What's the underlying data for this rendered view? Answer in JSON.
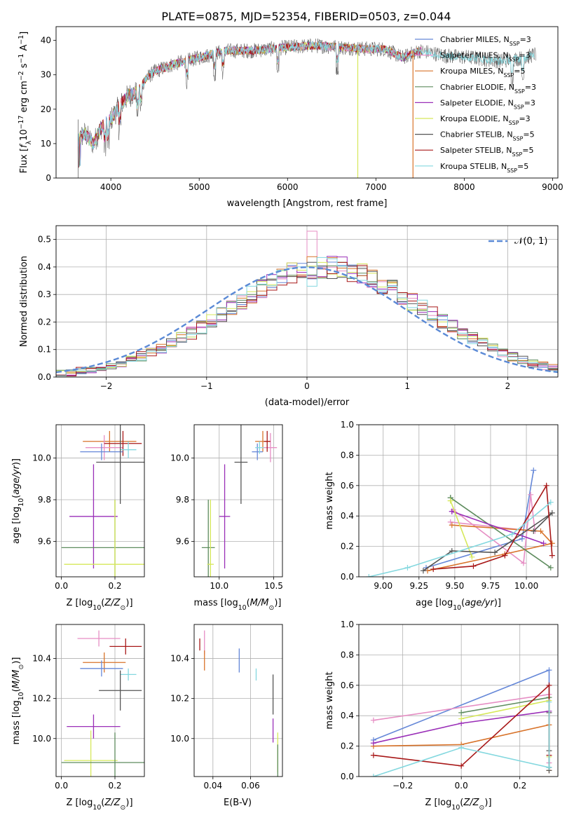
{
  "figure_title": "PLATE=0875, MJD=52354, FIBERID=0503, z=0.044",
  "models": [
    {
      "label": "Chabrier MILES, N_SSP=3",
      "color": "#6688d8"
    },
    {
      "label": "Salpeter MILES, N_SSP=3",
      "color": "#e68ec4"
    },
    {
      "label": "Kroupa MILES, N_SSP=5",
      "color": "#d8732a"
    },
    {
      "label": "Chabrier ELODIE, N_SSP=3",
      "color": "#5e8c5e"
    },
    {
      "label": "Salpeter ELODIE, N_SSP=3",
      "color": "#9a2fb8"
    },
    {
      "label": "Kroupa ELODIE, N_SSP=3",
      "color": "#d6e85a"
    },
    {
      "label": "Chabrier STELIB, N_SSP=5",
      "color": "#555555"
    },
    {
      "label": "Salpeter STELIB, N_SSP=5",
      "color": "#a81818"
    },
    {
      "label": "Kroupa STELIB, N_SSP=5",
      "color": "#84d8df"
    }
  ],
  "chart_data": [
    {
      "type": "line",
      "panel": "spectrum",
      "xlabel": "wavelength [Angstrom, rest frame]",
      "ylabel": "Flux [f_λ10^-17 erg cm^-2 s^-1 A^-1]",
      "xlim": [
        3380,
        9060
      ],
      "ylim": [
        0,
        44
      ],
      "xticks": [
        4000,
        5000,
        6000,
        7000,
        8000,
        9000
      ],
      "yticks": [
        0,
        10,
        20,
        30,
        40
      ],
      "continuum": {
        "x": [
          3630,
          3700,
          3800,
          3900,
          4000,
          4100,
          4200,
          4300,
          4400,
          4500,
          4700,
          5000,
          5300,
          5600,
          6000,
          6300,
          6600,
          6900,
          7100,
          7300,
          7500,
          7800,
          8100,
          8400,
          8700,
          8800
        ],
        "y": [
          11,
          13,
          10,
          15,
          17,
          21,
          24,
          25,
          29,
          31,
          33,
          35,
          37,
          37,
          38,
          38.5,
          38,
          37.5,
          37.5,
          35,
          37,
          35.5,
          35,
          34,
          35,
          36
        ]
      },
      "drops": [
        {
          "x": 6795,
          "y_from": 37,
          "y_to": 0
        },
        {
          "x": 7420,
          "y_from": 37,
          "y_to": 0
        }
      ],
      "legend": "right"
    },
    {
      "type": "step",
      "panel": "residual_distribution",
      "xlabel": "(data-model)/error",
      "ylabel": "Normed distribution",
      "xlim": [
        -2.5,
        2.5
      ],
      "ylim": [
        0,
        0.55
      ],
      "xticks": [
        -2,
        -1,
        0,
        1,
        2
      ],
      "yticks": [
        0.0,
        0.1,
        0.2,
        0.3,
        0.4,
        0.5
      ],
      "reference_curve": "𝒩(0, 1)",
      "bin_width": 0.1,
      "bin_start": -2.5,
      "envelope": [
        0.013,
        0.013,
        0.022,
        0.026,
        0.032,
        0.04,
        0.051,
        0.062,
        0.075,
        0.089,
        0.104,
        0.122,
        0.14,
        0.16,
        0.183,
        0.205,
        0.228,
        0.252,
        0.275,
        0.298,
        0.32,
        0.341,
        0.36,
        0.375,
        0.388,
        0.397,
        0.399,
        0.399,
        0.397,
        0.388,
        0.375,
        0.36,
        0.341,
        0.32,
        0.298,
        0.275,
        0.252,
        0.228,
        0.205,
        0.183,
        0.16,
        0.14,
        0.122,
        0.104,
        0.089,
        0.075,
        0.062,
        0.051,
        0.04,
        0.032
      ],
      "grid": true,
      "legend": "top-right"
    },
    {
      "type": "errorbar",
      "panel": "age_vs_Z",
      "xlabel": "Z [log10(Z/Z⊙)]",
      "ylabel": "age [log10(age/yr)]",
      "xlim": [
        -0.02,
        0.31
      ],
      "ylim": [
        9.43,
        10.16
      ],
      "xticks": [
        0.0,
        0.2
      ],
      "yticks": [
        9.6,
        9.8,
        10.0
      ],
      "points": [
        {
          "x": 0.18,
          "y": 10.08,
          "xerr": 0.1,
          "yerr": 0.05,
          "model": 2
        },
        {
          "x": 0.16,
          "y": 10.05,
          "xerr": 0.07,
          "yerr": 0.06,
          "model": 1
        },
        {
          "x": 0.23,
          "y": 10.07,
          "xerr": 0.07,
          "yerr": 0.06,
          "model": 7
        },
        {
          "x": 0.15,
          "y": 10.03,
          "xerr": 0.08,
          "yerr": 0.04,
          "model": 0
        },
        {
          "x": 0.25,
          "y": 10.04,
          "xerr": 0.03,
          "yerr": 0.04,
          "model": 8
        },
        {
          "x": 0.22,
          "y": 9.98,
          "xerr": 0.09,
          "yerr": 0.2,
          "model": 6
        },
        {
          "x": 0.12,
          "y": 9.72,
          "xerr": 0.09,
          "yerr": 0.25,
          "model": 4
        },
        {
          "x": 0.2,
          "y": 9.57,
          "xerr": 0.2,
          "yerr": 0.23,
          "model": 3
        },
        {
          "x": 0.2,
          "y": 9.49,
          "xerr": 0.19,
          "yerr": 0.31,
          "model": 5
        }
      ],
      "grid": true
    },
    {
      "type": "errorbar",
      "panel": "age_vs_mass",
      "xlabel": "mass [log10(M/M⊙)]",
      "ylim": [
        9.43,
        10.16
      ],
      "xlim": [
        9.77,
        10.58
      ],
      "xticks": [
        9.5,
        10.0,
        10.5
      ],
      "xticklabels": [
        "10.0",
        "10.5"
      ],
      "yticks": [
        9.6,
        9.8,
        10.0
      ],
      "points": [
        {
          "x": 10.4,
          "y": 10.08,
          "xerr": 0.07,
          "yerr": 0.05,
          "model": 2
        },
        {
          "x": 10.47,
          "y": 10.05,
          "xerr": 0.06,
          "yerr": 0.07,
          "model": 1
        },
        {
          "x": 10.44,
          "y": 10.08,
          "xerr": 0.03,
          "yerr": 0.05,
          "model": 7
        },
        {
          "x": 10.35,
          "y": 10.03,
          "xerr": 0.05,
          "yerr": 0.04,
          "model": 0
        },
        {
          "x": 10.37,
          "y": 10.05,
          "xerr": 0.04,
          "yerr": 0.03,
          "model": 8
        },
        {
          "x": 10.2,
          "y": 9.98,
          "xerr": 0.06,
          "yerr": 0.2,
          "model": 6
        },
        {
          "x": 10.05,
          "y": 9.72,
          "xerr": 0.05,
          "yerr": 0.25,
          "model": 4
        },
        {
          "x": 9.9,
          "y": 9.57,
          "xerr": 0.06,
          "yerr": 0.23,
          "model": 3
        },
        {
          "x": 9.92,
          "y": 9.49,
          "xerr": 0.03,
          "yerr": 0.31,
          "model": 5
        }
      ],
      "grid": true
    },
    {
      "type": "line",
      "panel": "mass_weight_vs_age",
      "xlabel": "age [log10(age/yr)]",
      "ylabel": "mass weight",
      "xlim": [
        8.83,
        10.22
      ],
      "ylim": [
        0,
        1.0
      ],
      "xticks": [
        9.0,
        9.25,
        9.5,
        9.75,
        10.0
      ],
      "yticks": [
        0.0,
        0.2,
        0.4,
        0.6,
        0.8,
        1.0
      ],
      "series": [
        {
          "model": 0,
          "x": [
            9.3,
            9.97,
            10.05
          ],
          "y": [
            0.06,
            0.25,
            0.7
          ]
        },
        {
          "model": 1,
          "x": [
            9.47,
            10.06,
            10.03,
            9.98,
            9.49
          ],
          "y": [
            0.36,
            0.3,
            0.54,
            0.09,
            0.44
          ]
        },
        {
          "model": 2,
          "x": [
            9.31,
            9.85,
            10.18,
            10.1,
            9.48
          ],
          "y": [
            0.04,
            0.15,
            0.22,
            0.3,
            0.34
          ]
        },
        {
          "model": 3,
          "x": [
            9.47,
            10.17,
            9.47
          ],
          "y": [
            0.52,
            0.06,
            0.52
          ]
        },
        {
          "model": 4,
          "x": [
            9.48,
            10.12,
            9.48
          ],
          "y": [
            0.43,
            0.22,
            0.43
          ]
        },
        {
          "model": 5,
          "x": [
            9.47,
            9.62,
            9.47
          ],
          "y": [
            0.5,
            0.13,
            0.5
          ]
        },
        {
          "model": 6,
          "x": [
            9.28,
            9.48,
            9.78,
            10.18,
            10.05
          ],
          "y": [
            0.04,
            0.17,
            0.16,
            0.42,
            0.3
          ]
        },
        {
          "model": 7,
          "x": [
            9.35,
            9.63,
            9.85,
            10.14,
            10.18
          ],
          "y": [
            0.05,
            0.07,
            0.14,
            0.6,
            0.14
          ]
        },
        {
          "model": 8,
          "x": [
            8.9,
            9.17,
            9.9,
            10.17
          ],
          "y": [
            0.0,
            0.06,
            0.28,
            0.49
          ]
        }
      ],
      "grid": true
    },
    {
      "type": "errorbar",
      "panel": "mass_vs_Z",
      "xlabel": "Z [log10(Z/Z⊙)]",
      "ylabel": "mass [log10(M/M⊙)]",
      "xlim": [
        -0.02,
        0.31
      ],
      "ylim": [
        9.81,
        10.57
      ],
      "xticks": [
        0.0,
        0.2
      ],
      "yticks": [
        10.0,
        10.2,
        10.4
      ],
      "points": [
        {
          "x": 0.14,
          "y": 10.5,
          "xerr": 0.08,
          "yerr": 0.04,
          "model": 1
        },
        {
          "x": 0.24,
          "y": 10.46,
          "xerr": 0.06,
          "yerr": 0.04,
          "model": 7
        },
        {
          "x": 0.16,
          "y": 10.38,
          "xerr": 0.08,
          "yerr": 0.05,
          "model": 2
        },
        {
          "x": 0.15,
          "y": 10.35,
          "xerr": 0.08,
          "yerr": 0.04,
          "model": 0
        },
        {
          "x": 0.25,
          "y": 10.32,
          "xerr": 0.03,
          "yerr": 0.03,
          "model": 8
        },
        {
          "x": 0.22,
          "y": 10.24,
          "xerr": 0.08,
          "yerr": 0.1,
          "model": 6
        },
        {
          "x": 0.12,
          "y": 10.06,
          "xerr": 0.1,
          "yerr": 0.06,
          "model": 4
        },
        {
          "x": 0.11,
          "y": 9.89,
          "xerr": 0.1,
          "yerr": 0.15,
          "model": 5
        },
        {
          "x": 0.2,
          "y": 9.88,
          "xerr": 0.2,
          "yerr": 0.15,
          "model": 3
        }
      ],
      "grid": true
    },
    {
      "type": "errorbar",
      "panel": "mass_vs_EBV",
      "xlabel": "E(B-V)",
      "xlim": [
        0.03,
        0.077
      ],
      "ylim": [
        9.81,
        10.57
      ],
      "xticks": [
        0.04,
        0.06
      ],
      "yticks": [
        10.0,
        10.2,
        10.4
      ],
      "points": [
        {
          "x": 0.033,
          "y": 10.47,
          "xerr": 0.0,
          "yerr": 0.03,
          "model": 7
        },
        {
          "x": 0.0355,
          "y": 10.48,
          "xerr": 0.0,
          "yerr": 0.06,
          "model": 1
        },
        {
          "x": 0.0355,
          "y": 10.39,
          "xerr": 0.0,
          "yerr": 0.05,
          "model": 2
        },
        {
          "x": 0.054,
          "y": 10.39,
          "xerr": 0.0,
          "yerr": 0.06,
          "model": 0
        },
        {
          "x": 0.063,
          "y": 10.32,
          "xerr": 0.0,
          "yerr": 0.03,
          "model": 8
        },
        {
          "x": 0.072,
          "y": 10.22,
          "xerr": 0.0,
          "yerr": 0.1,
          "model": 6
        },
        {
          "x": 0.072,
          "y": 10.04,
          "xerr": 0.0,
          "yerr": 0.06,
          "model": 4
        },
        {
          "x": 0.0745,
          "y": 9.93,
          "xerr": 0.0,
          "yerr": 0.1,
          "model": 5
        },
        {
          "x": 0.0745,
          "y": 9.89,
          "xerr": 0.0,
          "yerr": 0.08,
          "model": 3
        }
      ],
      "grid": true
    },
    {
      "type": "line",
      "panel": "mass_weight_vs_Z",
      "xlabel": "Z [log10(Z/Z⊙)]",
      "ylabel": "mass weight",
      "xlim": [
        -0.35,
        0.33
      ],
      "ylim": [
        0,
        1.0
      ],
      "xticks": [
        -0.2,
        0.0,
        0.2
      ],
      "yticks": [
        0.0,
        0.2,
        0.4,
        0.6,
        0.8,
        1.0
      ],
      "series": [
        {
          "model": 0,
          "x": [
            -0.3,
            0.3,
            0.3
          ],
          "y": [
            0.24,
            0.7,
            0.06
          ]
        },
        {
          "model": 1,
          "x": [
            -0.3,
            0.3,
            0.3
          ],
          "y": [
            0.37,
            0.54,
            0.09
          ]
        },
        {
          "model": 2,
          "x": [
            -0.3,
            0.0,
            0.3,
            0.3
          ],
          "y": [
            0.2,
            0.21,
            0.34,
            0.04
          ]
        },
        {
          "model": 3,
          "x": [
            0.0,
            0.3,
            0.3
          ],
          "y": [
            0.42,
            0.52,
            0.06
          ]
        },
        {
          "model": 4,
          "x": [
            -0.3,
            0.0,
            0.3
          ],
          "y": [
            0.22,
            0.35,
            0.43
          ]
        },
        {
          "model": 5,
          "x": [
            0.0,
            0.3,
            0.3
          ],
          "y": [
            0.38,
            0.5,
            0.13
          ]
        },
        {
          "model": 6,
          "x": [
            0.3,
            0.3,
            0.3
          ],
          "y": [
            0.42,
            0.17,
            0.04
          ]
        },
        {
          "model": 7,
          "x": [
            -0.3,
            0.0,
            0.3,
            0.3
          ],
          "y": [
            0.14,
            0.07,
            0.6,
            0.14
          ]
        },
        {
          "model": 8,
          "x": [
            -0.3,
            0.0,
            0.3,
            0.3
          ],
          "y": [
            0.0,
            0.19,
            0.06,
            0.49
          ]
        }
      ],
      "grid": true
    }
  ]
}
